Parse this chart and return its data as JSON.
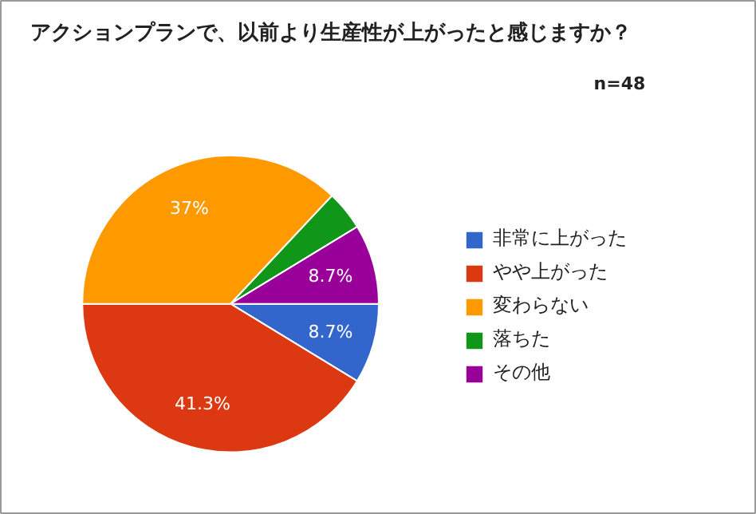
{
  "chart_data": {
    "type": "pie",
    "title": "アクションプランで、以前より生産性が上がったと感じますか？",
    "categories": [
      "非常に上がった",
      "やや上がった",
      "変わらない",
      "落ちた",
      "その他"
    ],
    "values": [
      8.7,
      41.3,
      37,
      4.3,
      8.7
    ],
    "colors": [
      "#3366cc",
      "#dc3912",
      "#ff9900",
      "#109618",
      "#990099"
    ],
    "value_labels": [
      "8.7%",
      "41.3%",
      "37%",
      null,
      "8.7%"
    ],
    "annotations": [
      "n=48"
    ],
    "legend": "right"
  }
}
